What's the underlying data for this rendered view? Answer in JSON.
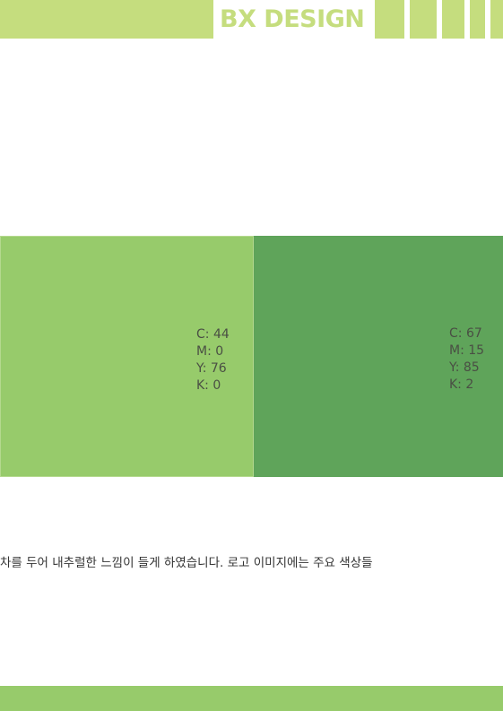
{
  "header": {
    "title": "BX DESIGN",
    "accent_color": "#c5dd7e"
  },
  "swatches": [
    {
      "color": "#97cb6b",
      "c": "C: 44",
      "m": "M: 0",
      "y": "Y: 76",
      "k": "K: 0"
    },
    {
      "color": "#5fa45a",
      "c": "C: 67",
      "m": "M: 15",
      "y": "Y: 85",
      "k": "K: 2"
    }
  ],
  "body": {
    "text": "차를 두어 내추럴한 느낌이 들게 하였습니다. 로고 이미지에는 주요 색상들"
  },
  "footer": {
    "color": "#97cb6b"
  }
}
